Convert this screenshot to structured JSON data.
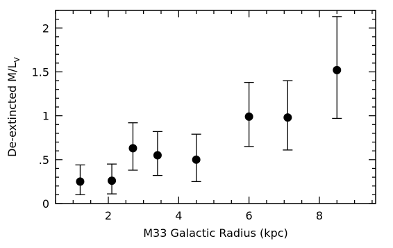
{
  "chart_data": {
    "type": "scatter",
    "xlabel": "M33 Galactic Radius (kpc)",
    "ylabel_main": "De-extincted M/L",
    "ylabel_subscript": "V",
    "xlim": [
      0.5,
      9.6
    ],
    "ylim": [
      0,
      2.2
    ],
    "grid": false,
    "x_ticks": [
      {
        "value": 2,
        "label": "2"
      },
      {
        "value": 4,
        "label": "4"
      },
      {
        "value": 6,
        "label": "6"
      },
      {
        "value": 8,
        "label": "8"
      }
    ],
    "y_ticks": [
      {
        "value": 0,
        "label": "0"
      },
      {
        "value": 0.5,
        "label": ".5"
      },
      {
        "value": 1,
        "label": "1"
      },
      {
        "value": 1.5,
        "label": "1.5"
      },
      {
        "value": 2,
        "label": "2"
      }
    ],
    "points": [
      {
        "x": 1.2,
        "y": 0.25,
        "ylow": 0.1,
        "yhigh": 0.44
      },
      {
        "x": 2.1,
        "y": 0.26,
        "ylow": 0.11,
        "yhigh": 0.45
      },
      {
        "x": 2.7,
        "y": 0.63,
        "ylow": 0.38,
        "yhigh": 0.92
      },
      {
        "x": 3.4,
        "y": 0.55,
        "ylow": 0.32,
        "yhigh": 0.82
      },
      {
        "x": 4.5,
        "y": 0.5,
        "ylow": 0.25,
        "yhigh": 0.79
      },
      {
        "x": 6.0,
        "y": 0.99,
        "ylow": 0.65,
        "yhigh": 1.38
      },
      {
        "x": 7.1,
        "y": 0.98,
        "ylow": 0.61,
        "yhigh": 1.4
      },
      {
        "x": 8.5,
        "y": 1.52,
        "ylow": 0.97,
        "yhigh": 2.13
      }
    ]
  }
}
